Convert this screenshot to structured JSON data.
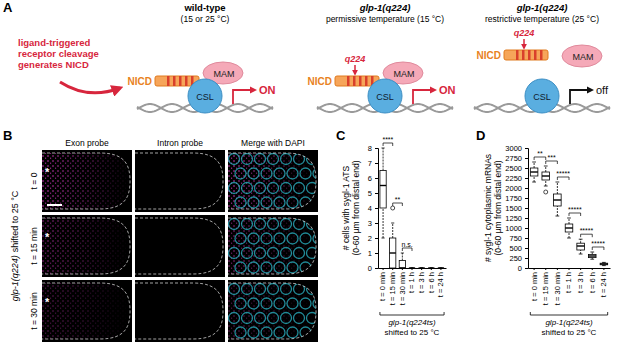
{
  "panel_labels": [
    "A",
    "B",
    "C",
    "D"
  ],
  "diagram": {
    "intro": [
      "ligand-triggered",
      "receptor cleavage",
      "generates NICD"
    ],
    "components": {
      "nicd": "NICD",
      "mam": "MAM",
      "csl": "CSL"
    },
    "panels": [
      {
        "title": "wild-type",
        "subtitle": "(15 or 25 °C)",
        "output": "ON"
      },
      {
        "title": "glp-1(q224)",
        "subtitle": "permissive temperature (15 °C)",
        "mutation": "q224",
        "output": "ON"
      },
      {
        "title": "glp-1(q224)",
        "subtitle": "restrictive temperature (25 °C)",
        "mutation": "q224",
        "output": "off"
      }
    ]
  },
  "images": {
    "genotype": "glp-1(q224)",
    "condition": "shifted to 25 °C",
    "columns": [
      "Exon probe",
      "Intron probe",
      "Merge with DAPI"
    ],
    "rows": [
      "t = 0",
      "t = 15 min",
      "t = 30 min"
    ],
    "marker": "*"
  },
  "chart_data": [
    {
      "type": "box",
      "y_label": [
        "# cells with sygl-1 ATS",
        "(0-60 µm from distal end)"
      ],
      "categories": [
        "t = 0 min",
        "t = 15 min",
        "t = 30 min",
        "t = 1 h",
        "t = 3 h",
        "t = 6 h",
        "t = 24 h"
      ],
      "boxes": [
        {
          "min": 2,
          "q1": 4,
          "median": 5.5,
          "q3": 6.5,
          "max": 8,
          "outliers": []
        },
        {
          "min": 0,
          "q1": 0,
          "median": 1,
          "q3": 2,
          "max": 3,
          "outliers": [
            4
          ]
        },
        {
          "min": 0,
          "q1": 0,
          "median": 0,
          "q3": 0.5,
          "max": 1,
          "outliers": []
        },
        {
          "min": 0,
          "q1": 0,
          "median": 0,
          "q3": 0,
          "max": 0,
          "outliers": []
        },
        {
          "min": 0,
          "q1": 0,
          "median": 0,
          "q3": 0,
          "max": 0,
          "outliers": []
        },
        {
          "min": 0,
          "q1": 0,
          "median": 0,
          "q3": 0,
          "max": 0,
          "outliers": []
        },
        {
          "min": 0,
          "q1": 0,
          "median": 0,
          "q3": 0,
          "max": 0,
          "outliers": []
        }
      ],
      "ylim": [
        0,
        8
      ],
      "yticks": [
        0,
        1,
        2,
        3,
        4,
        5,
        6,
        7,
        8
      ],
      "comparisons": [
        {
          "between": [
            "t = 0 min",
            "t = 15 min"
          ],
          "label": "****"
        },
        {
          "between": [
            "t = 15 min",
            "t = 30 min"
          ],
          "label": "**"
        },
        {
          "between": [
            "t = 30 min",
            "t = 1 h"
          ],
          "label": "n.s."
        }
      ],
      "group_label": [
        "glp-1(q224ts)",
        "shifted to 25 °C"
      ]
    },
    {
      "type": "box",
      "y_label": [
        "# sygl-1 cytoplasmic mRNAs",
        "(0-60 µm from distal end)"
      ],
      "categories": [
        "t = 0 min",
        "t = 15 min",
        "t = 30 min",
        "t = 1 h",
        "t = 3 h",
        "t = 6 h",
        "t = 24 h"
      ],
      "boxes": [
        {
          "min": 2150,
          "q1": 2300,
          "median": 2400,
          "q3": 2500,
          "max": 2650,
          "outliers": []
        },
        {
          "min": 2050,
          "q1": 2200,
          "median": 2300,
          "q3": 2400,
          "max": 2550,
          "outliers": [
            1900
          ]
        },
        {
          "min": 1300,
          "q1": 1550,
          "median": 1700,
          "q3": 1850,
          "max": 2150,
          "outliers": []
        },
        {
          "min": 750,
          "q1": 900,
          "median": 1000,
          "q3": 1100,
          "max": 1250,
          "outliers": []
        },
        {
          "min": 350,
          "q1": 450,
          "median": 550,
          "q3": 620,
          "max": 720,
          "outliers": []
        },
        {
          "min": 220,
          "q1": 260,
          "median": 300,
          "q3": 340,
          "max": 400,
          "outliers": []
        },
        {
          "min": 60,
          "q1": 80,
          "median": 100,
          "q3": 120,
          "max": 140,
          "outliers": []
        }
      ],
      "ylim": [
        0,
        3000
      ],
      "yticks": [
        0,
        250,
        500,
        750,
        1000,
        1250,
        1500,
        1750,
        2000,
        2250,
        2500,
        2750,
        3000
      ],
      "comparisons": [
        {
          "between": [
            "t = 0 min",
            "t = 15 min"
          ],
          "label": "**"
        },
        {
          "between": [
            "t = 15 min",
            "t = 30 min"
          ],
          "label": "***"
        },
        {
          "between": [
            "t = 30 min",
            "t = 1 h"
          ],
          "label": "*****"
        },
        {
          "between": [
            "t = 1 h",
            "t = 3 h"
          ],
          "label": "*****"
        },
        {
          "between": [
            "t = 3 h",
            "t = 6 h"
          ],
          "label": "*****"
        },
        {
          "between": [
            "t = 6 h",
            "t = 24 h"
          ],
          "label": "*****"
        }
      ],
      "group_label": [
        "glp-1(q224ts)",
        "shifted to 25 °C"
      ]
    }
  ]
}
